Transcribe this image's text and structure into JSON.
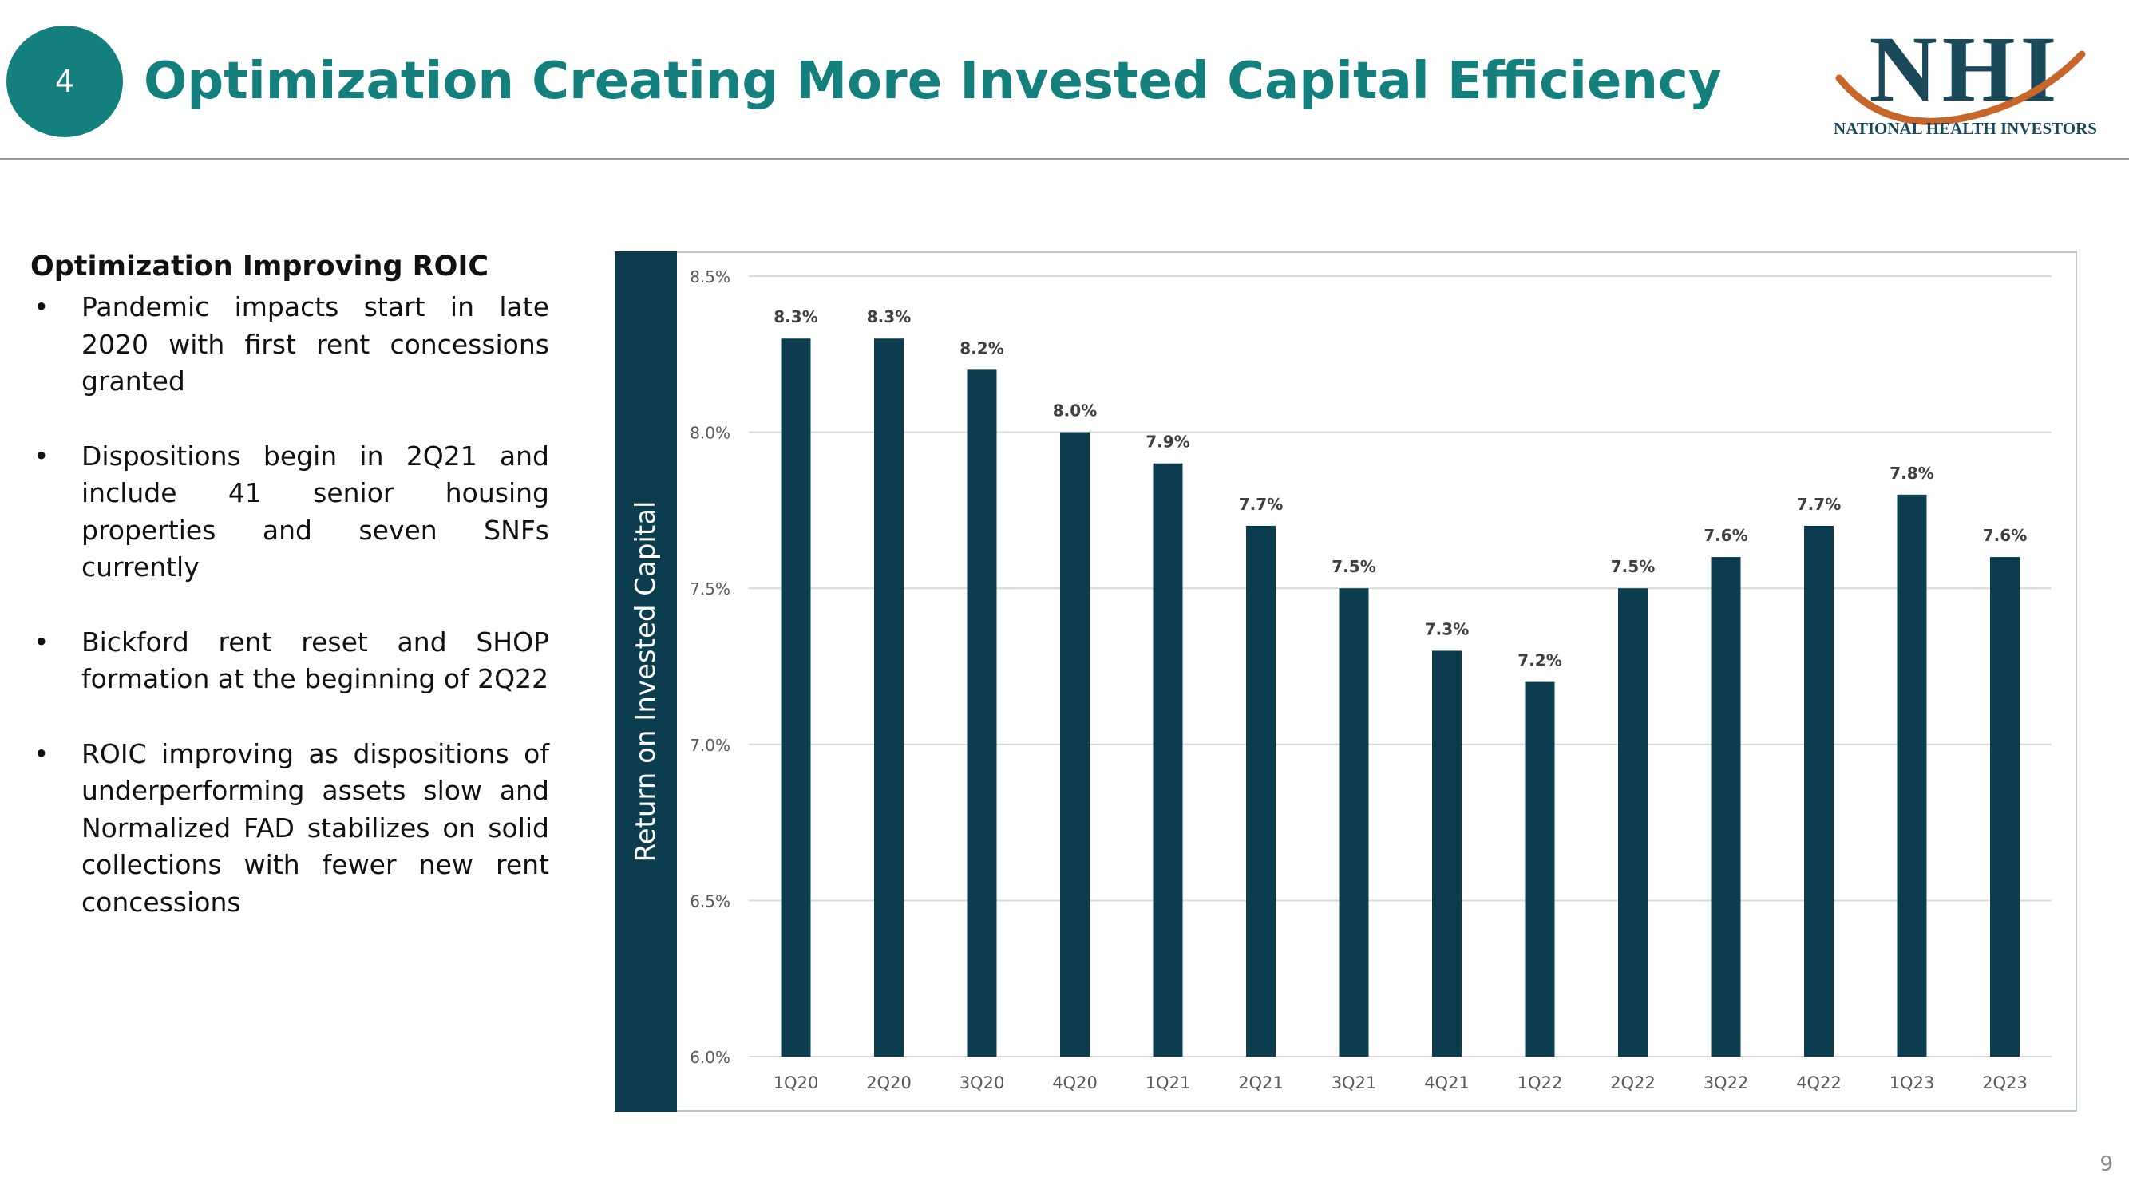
{
  "header": {
    "slide_section_number": "4",
    "title": "Optimization Creating More Invested Capital Efficiency",
    "logo": {
      "mark": "NHI",
      "caption": "NATIONAL HEALTH INVESTORS"
    }
  },
  "left_panel": {
    "heading": "Optimization Improving ROIC",
    "bullets": [
      "Pandemic impacts start in late 2020 with first rent concessions granted",
      "Dispositions begin in 2Q21 and include 41 senior housing properties and seven SNFs currently",
      "Bickford rent reset and SHOP formation at the beginning of 2Q22",
      "ROIC improving as dispositions of underperforming assets slow and Normalized FAD stabilizes on solid collections with fewer new rent concessions"
    ]
  },
  "chart_data": {
    "type": "bar",
    "ylabel": "Return on Invested Capital",
    "xlabel": "",
    "categories": [
      "1Q20",
      "2Q20",
      "3Q20",
      "4Q20",
      "1Q21",
      "2Q21",
      "3Q21",
      "4Q21",
      "1Q22",
      "2Q22",
      "3Q22",
      "4Q22",
      "1Q23",
      "2Q23"
    ],
    "values": [
      8.3,
      8.3,
      8.2,
      8.0,
      7.9,
      7.7,
      7.5,
      7.3,
      7.2,
      7.5,
      7.6,
      7.7,
      7.8,
      7.6
    ],
    "data_labels": [
      "8.3%",
      "8.3%",
      "8.2%",
      "8.0%",
      "7.9%",
      "7.7%",
      "7.5%",
      "7.3%",
      "7.2%",
      "7.5%",
      "7.6%",
      "7.7%",
      "7.8%",
      "7.6%"
    ],
    "ylim": [
      6.0,
      8.5
    ],
    "yticks": [
      6.0,
      6.5,
      7.0,
      7.5,
      8.0,
      8.5
    ],
    "ytick_labels": [
      "6.0%",
      "6.5%",
      "7.0%",
      "7.5%",
      "8.0%",
      "8.5%"
    ],
    "grid": true,
    "legend": "none",
    "bar_color": "#0b3d4f"
  },
  "footer": {
    "page_number": "9"
  },
  "colors": {
    "teal": "#13807d",
    "navy": "#0b3d4f",
    "logo_orange": "#c8652a"
  }
}
